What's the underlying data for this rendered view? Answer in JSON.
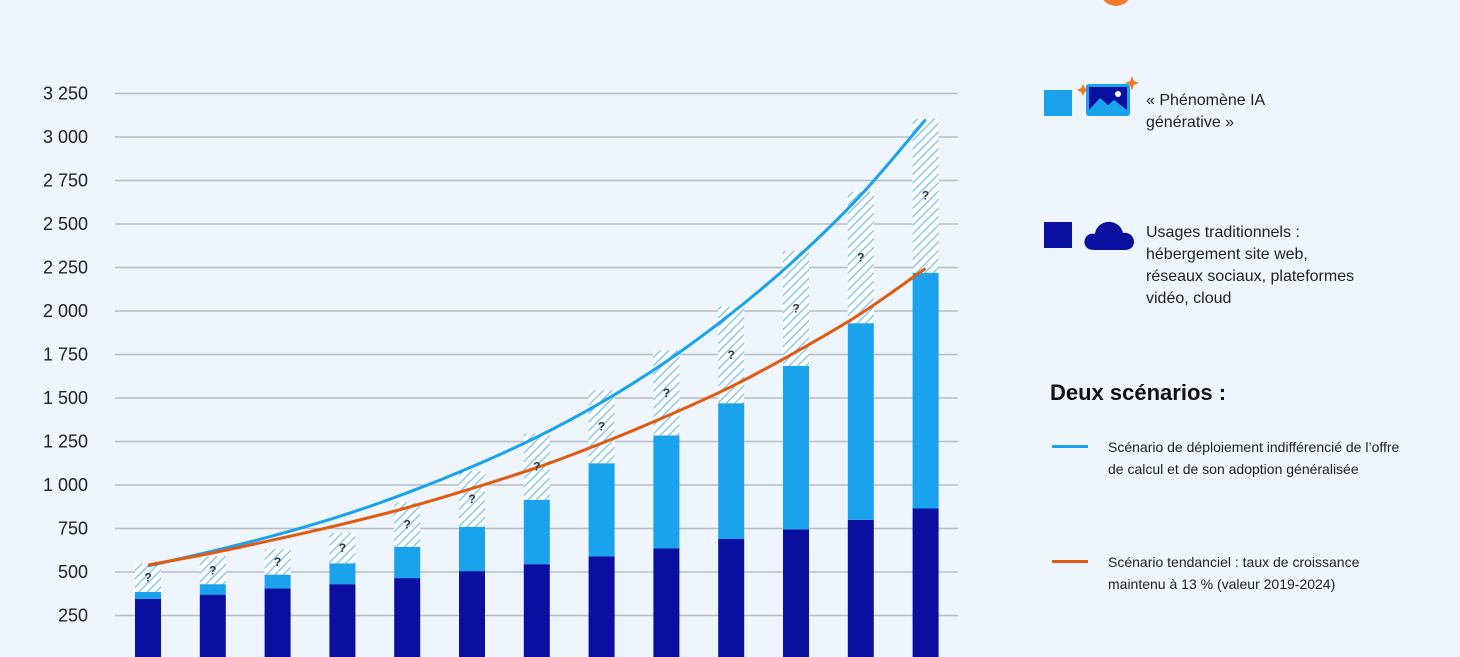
{
  "chart_data": {
    "type": "bar",
    "stacked": true,
    "categories": [
      "",
      "",
      "",
      "",
      "",
      "",
      "",
      "",
      "",
      "",
      "",
      "",
      ""
    ],
    "ylim": [
      0,
      3250
    ],
    "yticks": [
      250,
      500,
      750,
      1000,
      1250,
      1500,
      1750,
      2000,
      2250,
      2500,
      2750,
      3000,
      3250
    ],
    "ytick_labels": [
      "250",
      "500",
      "750",
      "1 000",
      "1 250",
      "1 500",
      "1 750",
      "2 000",
      "2 250",
      "2 500",
      "2 750",
      "3 000",
      "3 250"
    ],
    "grid": true,
    "series": [
      {
        "name": "Usages traditionnels",
        "color": "#0a0fa0",
        "values": [
          345,
          370,
          405,
          430,
          465,
          505,
          545,
          590,
          635,
          690,
          745,
          800,
          865
        ]
      },
      {
        "name": "« Phénomène IA générative »",
        "color": "#1aa3ec",
        "values": [
          40,
          60,
          80,
          120,
          180,
          255,
          370,
          535,
          650,
          780,
          940,
          1130,
          1355
        ]
      },
      {
        "name": "uncertain",
        "color": "#1aa3ec",
        "pattern": "hatched",
        "values": [
          165,
          160,
          145,
          175,
          255,
          320,
          380,
          420,
          490,
          555,
          660,
          755,
          885
        ]
      }
    ],
    "uncertain_label": "?",
    "lines": [
      {
        "name": "Scénario de déploiement indifférencié",
        "color": "#1aa3ec",
        "values": [
          535,
          620,
          715,
          825,
          955,
          1105,
          1275,
          1475,
          1710,
          1985,
          2300,
          2665,
          3100
        ]
      },
      {
        "name": "Scénario tendanciel",
        "color": "#e25a0f",
        "values": [
          540,
          610,
          690,
          775,
          870,
          980,
          1100,
          1240,
          1395,
          1565,
          1765,
          1985,
          2245
        ]
      }
    ]
  },
  "legend": {
    "genai_label": "« Phénomène IA générative »",
    "genai_color": "#1aa3ec",
    "genai_icon": "sparkle-image-icon",
    "trad_label": "Usages traditionnels : hébergement site web, réseaux sociaux, plateformes vidéo, cloud",
    "trad_color": "#0a0fa0",
    "trad_icon": "cloud-icon",
    "scenarios_title": "Deux scénarios :",
    "scenario1": "Scénario de déploiement indifférencié de l’offre de calcul et de son adoption généralisée",
    "scenario2": "Scénario tendanciel : taux de croissance maintenu à 13 % (valeur 2019-2024)"
  }
}
